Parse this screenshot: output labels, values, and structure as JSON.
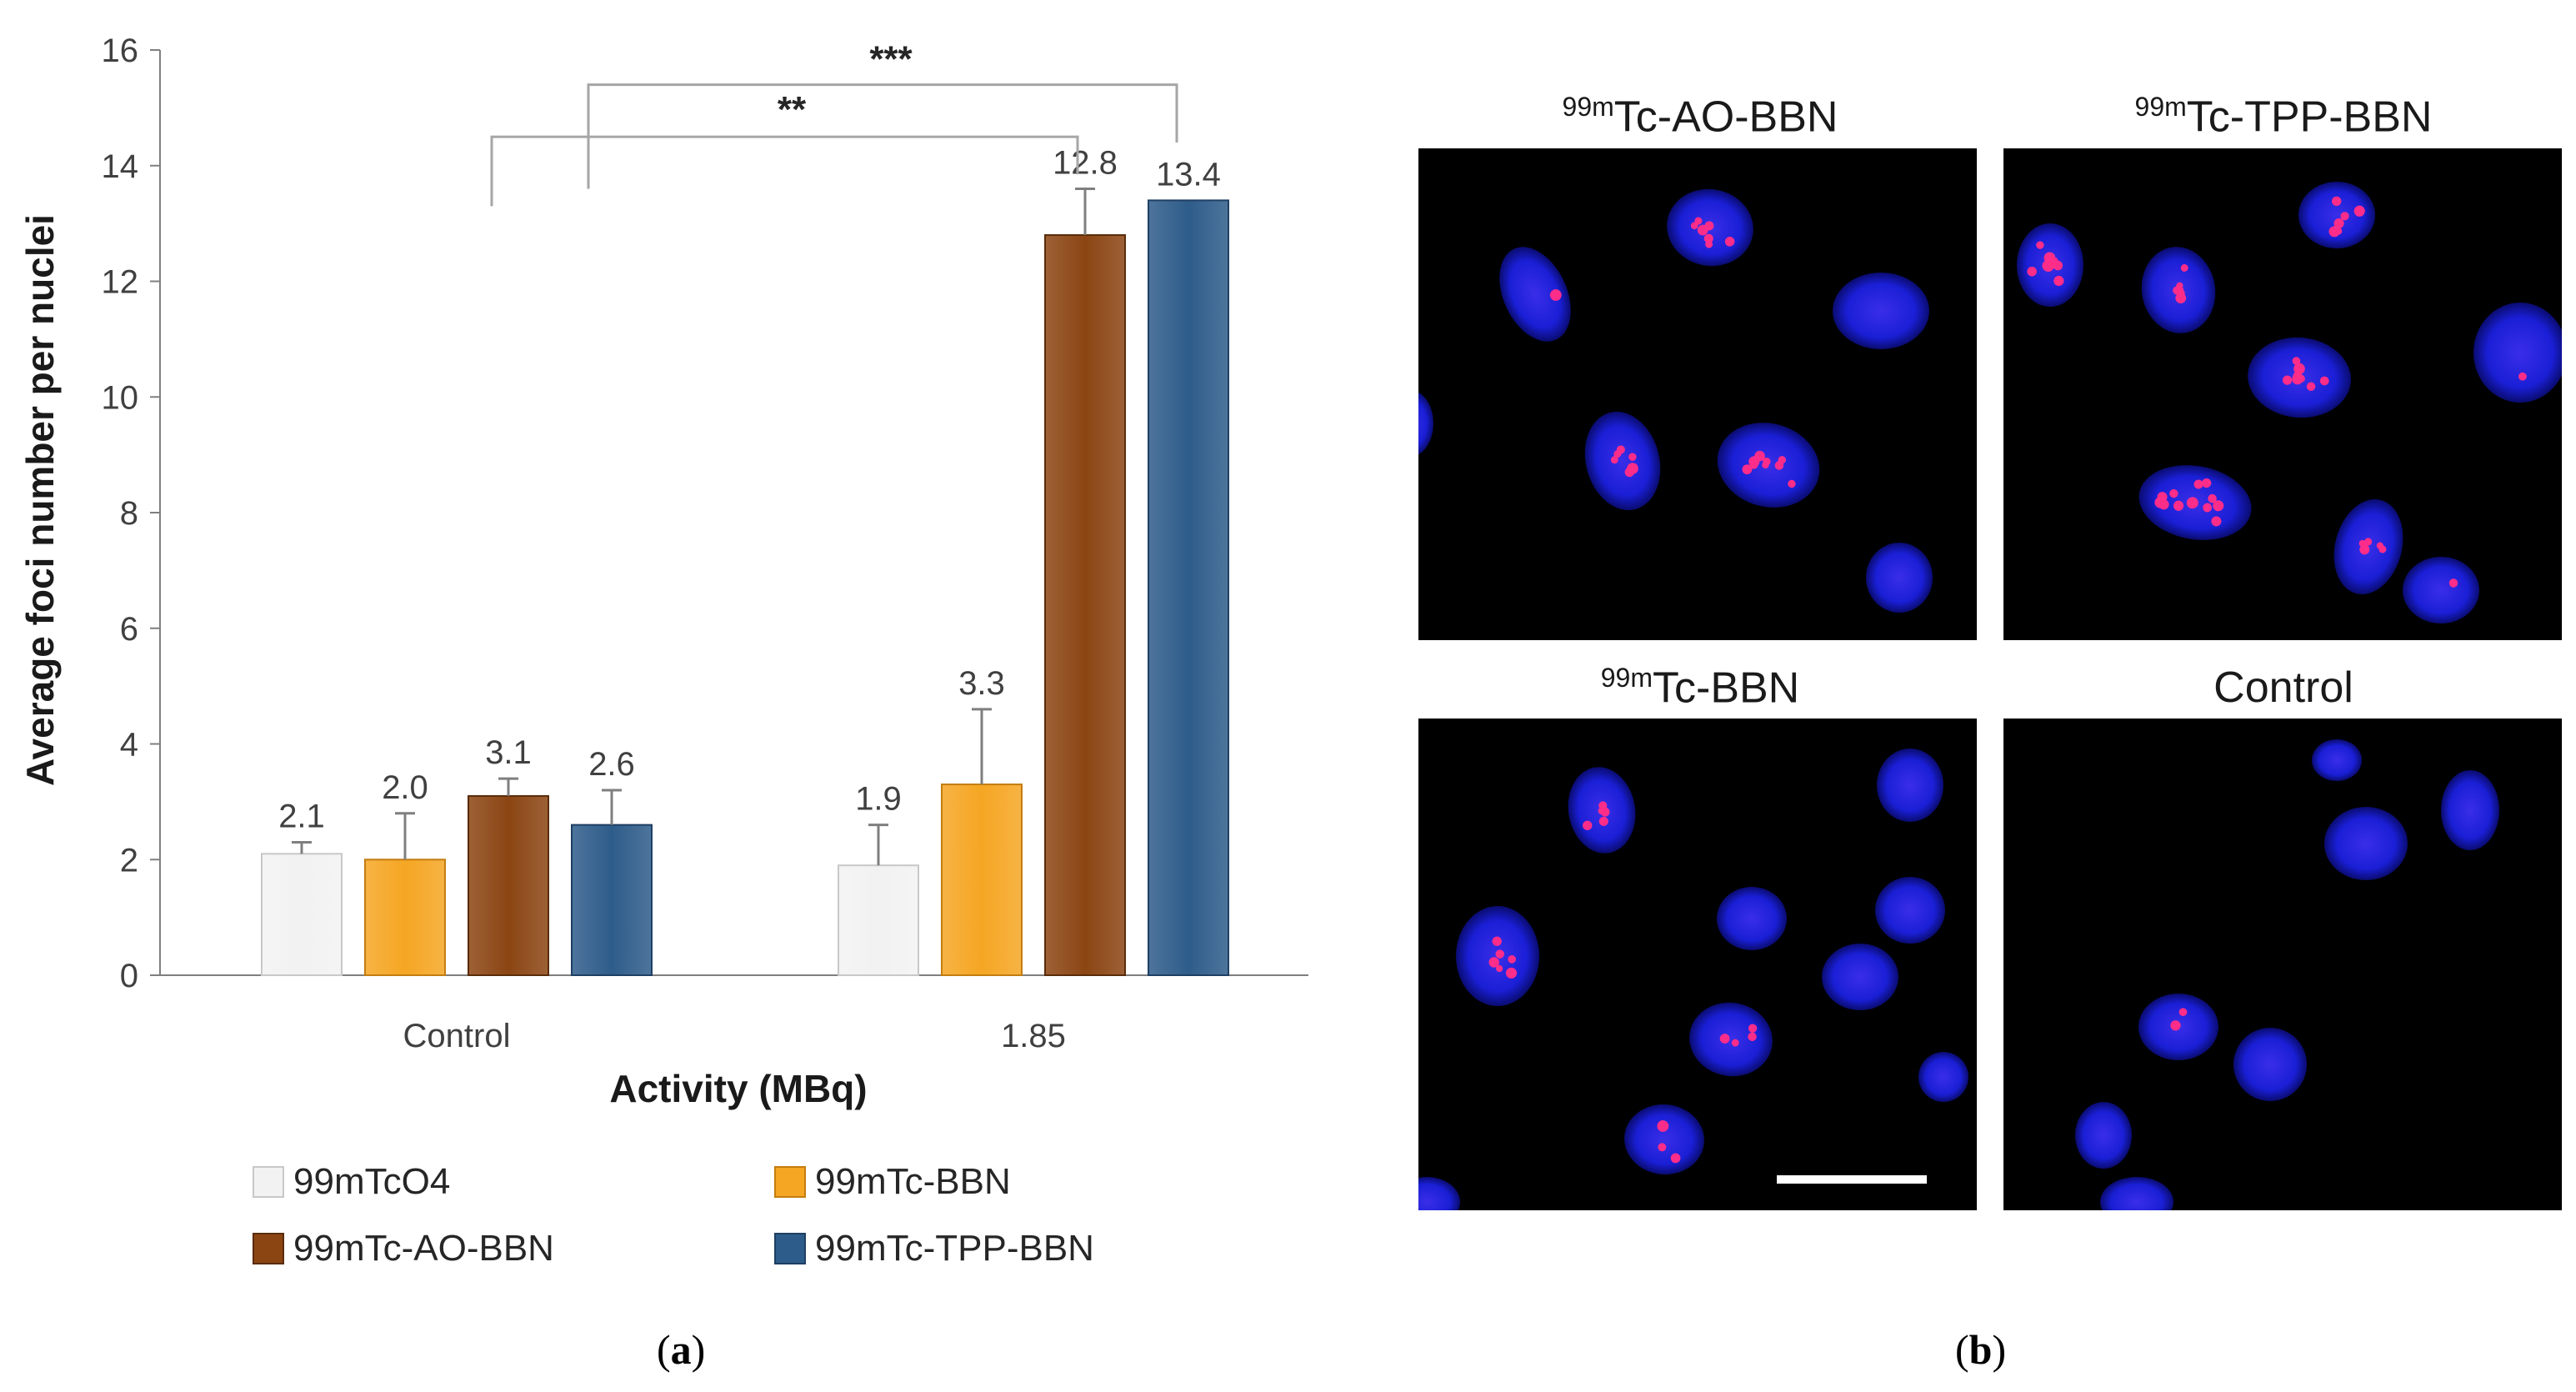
{
  "chart_data": {
    "type": "bar",
    "categories": [
      "Control",
      "1.85"
    ],
    "series": [
      {
        "name": "99mTcO4",
        "values": [
          2.1,
          1.9
        ],
        "errors": [
          0.2,
          0.7
        ],
        "color": "#f2f2f2"
      },
      {
        "name": "99mTc-BBN",
        "values": [
          2.0,
          3.3
        ],
        "errors": [
          0.8,
          1.3
        ],
        "color": "#f5a623"
      },
      {
        "name": "99mTc-AO-BBN",
        "values": [
          3.1,
          12.8
        ],
        "errors": [
          0.3,
          0.8
        ],
        "color": "#8b4513"
      },
      {
        "name": "99mTc-TPP-BBN",
        "values": [
          2.6,
          13.4
        ],
        "errors": [
          0.6,
          0.0
        ],
        "color": "#2e5c8a"
      }
    ],
    "data_labels": [
      [
        "2.1",
        "1.9"
      ],
      [
        "2.0",
        "3.3"
      ],
      [
        "3.1",
        "12.8"
      ],
      [
        "2.6",
        "13.4"
      ]
    ],
    "xlabel": "Activity (MBq)",
    "ylabel": "Average foci number per nuclei",
    "ylim": [
      0,
      16
    ],
    "yticks": [
      "0",
      "2",
      "4",
      "6",
      "8",
      "10",
      "12",
      "14",
      "16"
    ],
    "grid": false,
    "legend_position": "bottom",
    "significance": [
      {
        "label": "**",
        "from": "Control",
        "to": "99mTc-AO-BBN at 1.85"
      },
      {
        "label": "***",
        "from": "Control",
        "to": "99mTc-TPP-BBN at 1.85"
      }
    ]
  },
  "captions": {
    "a": "a",
    "b": "b"
  },
  "panels": [
    {
      "sup": "99m",
      "title": "Tc-AO-BBN"
    },
    {
      "sup": "99m",
      "title": "Tc-TPP-BBN"
    },
    {
      "sup": "99m",
      "title": "Tc-BBN"
    },
    {
      "sup": "",
      "title": "Control"
    }
  ],
  "colors": {
    "nucleus": "#1a1fd6",
    "foci": "#ff2d8a",
    "background": "#000000"
  }
}
